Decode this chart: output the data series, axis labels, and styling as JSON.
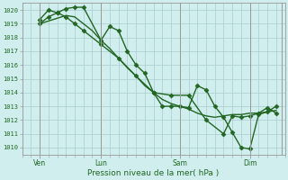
{
  "background_color": "#d0eeee",
  "grid_color": "#aacccc",
  "line_color": "#226622",
  "marker_color": "#226622",
  "xlabel": "Pression niveau de la mer( hPa )",
  "ytick_labels": [
    1010,
    1011,
    1012,
    1013,
    1014,
    1015,
    1016,
    1017,
    1018,
    1019,
    1020
  ],
  "ylim": [
    1009.5,
    1020.5
  ],
  "xlim": [
    0.0,
    15.0
  ],
  "vlines": [
    1.0,
    4.5,
    9.0,
    13.0,
    14.8
  ],
  "xtick_positions": [
    1.0,
    4.5,
    9.0,
    13.0
  ],
  "xtick_labels": [
    "Ven",
    "Lun",
    "Sam",
    "Dim"
  ],
  "series": [
    {
      "x": [
        1.0,
        1.5,
        2.0,
        2.5,
        3.0,
        3.5,
        4.5,
        5.0,
        5.5,
        6.0,
        6.5,
        7.0,
        7.5,
        8.0,
        8.5,
        9.0,
        9.5,
        10.0,
        10.5,
        11.0,
        11.5,
        12.0,
        12.5,
        13.0,
        13.5,
        14.0,
        14.5
      ],
      "y": [
        1019.0,
        1019.5,
        1019.8,
        1020.1,
        1020.2,
        1020.2,
        1017.8,
        1018.8,
        1018.5,
        1017.0,
        1016.0,
        1015.4,
        1014.0,
        1013.0,
        1013.0,
        1013.0,
        1012.9,
        1014.5,
        1014.2,
        1013.0,
        1012.2,
        1011.1,
        1010.0,
        1009.9,
        1012.4,
        1012.6,
        1013.0
      ],
      "marker": "D",
      "markersize": 2.5,
      "linewidth": 1.0
    },
    {
      "x": [
        1.0,
        1.5,
        2.0,
        2.5,
        3.0,
        3.5,
        4.5,
        5.5,
        6.5,
        7.5,
        8.5,
        9.5,
        10.5,
        11.5,
        12.0,
        12.5,
        13.0,
        13.5,
        14.0,
        14.5
      ],
      "y": [
        1019.3,
        1020.0,
        1019.8,
        1019.5,
        1019.0,
        1018.5,
        1017.5,
        1016.5,
        1015.2,
        1014.0,
        1013.8,
        1013.8,
        1012.0,
        1011.0,
        1012.3,
        1012.2,
        1012.3,
        1012.5,
        1012.9,
        1012.5
      ],
      "marker": "D",
      "markersize": 2.5,
      "linewidth": 1.0
    },
    {
      "x": [
        1.0,
        1.5,
        2.0,
        2.5,
        3.0,
        3.5,
        4.0,
        4.5,
        5.0,
        5.5,
        6.0,
        6.5,
        7.0,
        7.5,
        8.0,
        8.5,
        9.0,
        9.5,
        10.0,
        10.5,
        11.0,
        11.5,
        12.0,
        12.5,
        13.0,
        13.5,
        14.0,
        14.5
      ],
      "y": [
        1019.0,
        1019.2,
        1019.4,
        1019.6,
        1019.5,
        1019.0,
        1018.5,
        1017.8,
        1017.2,
        1016.5,
        1015.8,
        1015.2,
        1014.5,
        1014.0,
        1013.5,
        1013.2,
        1013.0,
        1012.8,
        1012.5,
        1012.3,
        1012.2,
        1012.3,
        1012.4,
        1012.4,
        1012.5,
        1012.5,
        1012.6,
        1012.7
      ],
      "marker": null,
      "markersize": 0,
      "linewidth": 1.0
    }
  ]
}
